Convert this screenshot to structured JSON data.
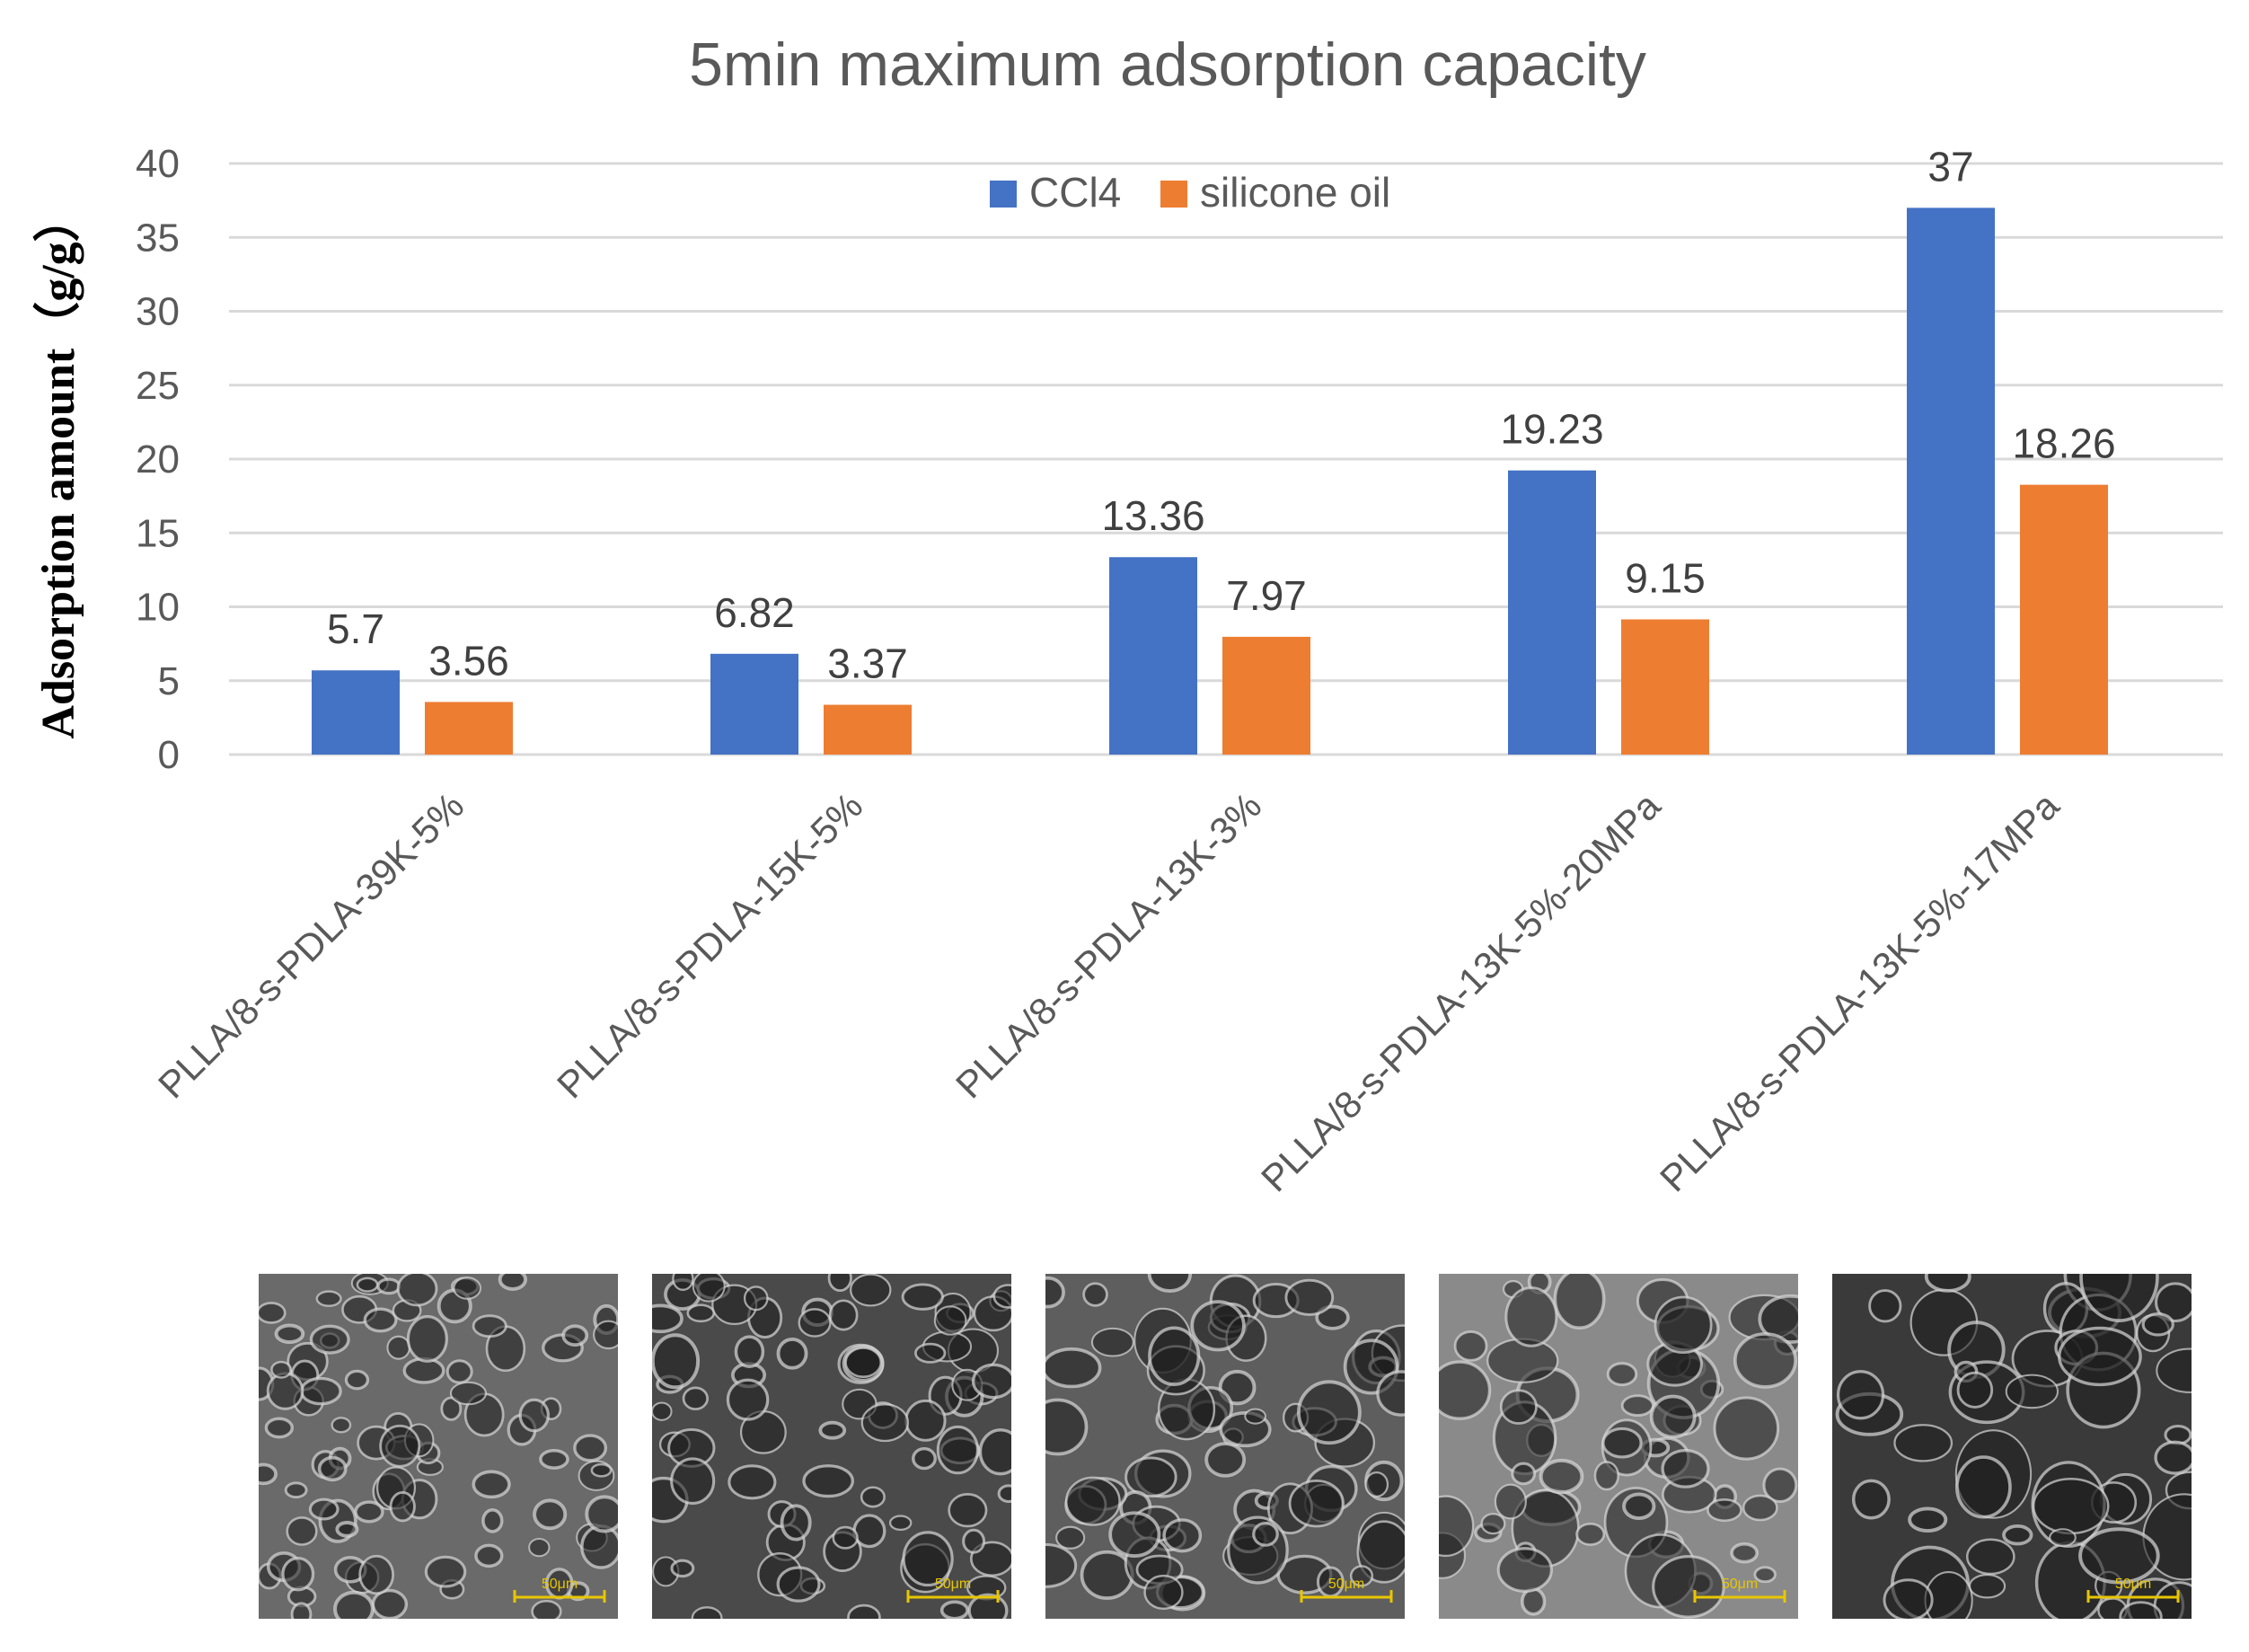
{
  "chart_data": {
    "type": "bar",
    "title": "5min maximum adsorption capacity",
    "xlabel": "",
    "ylabel": "Adsorption amount（g/g）",
    "ylim": [
      0,
      40
    ],
    "yticks": [
      0,
      5,
      10,
      15,
      20,
      25,
      30,
      35,
      40
    ],
    "grid": true,
    "legend_position": "top-center",
    "categories": [
      "PLLA/8-s-PDLA-39K-5%",
      "PLLA/8-s-PDLA-15K-5%",
      "PLLA/8-s-PDLA-13K-3%",
      "PLLA/8-s-PDLA-13K-5%-20MPa",
      "PLLA/8-s-PDLA-13K-5%-17MPa"
    ],
    "series": [
      {
        "name": "CCl4",
        "color": "#4472C4",
        "values": [
          5.7,
          6.82,
          13.36,
          19.23,
          37
        ]
      },
      {
        "name": "silicone oil",
        "color": "#ED7D31",
        "values": [
          3.56,
          3.37,
          7.97,
          9.15,
          18.26
        ]
      }
    ],
    "data_labels": [
      [
        "5.7",
        "6.82",
        "13.36",
        "19.23",
        "37"
      ],
      [
        "3.56",
        "3.37",
        "7.97",
        "9.15",
        "18.26"
      ]
    ]
  },
  "sem_images": [
    {
      "scale_label": "50μm",
      "tone": "#6a6a6a"
    },
    {
      "scale_label": "50μm",
      "tone": "#4a4a4a"
    },
    {
      "scale_label": "50μm",
      "tone": "#5e5e5e"
    },
    {
      "scale_label": "50μm",
      "tone": "#8a8a8a"
    },
    {
      "scale_label": "50μm",
      "tone": "#3a3a3a"
    }
  ],
  "colors": {
    "axis_text": "#595959",
    "grid": "#d9d9d9",
    "scale_bar": "#e8c600"
  }
}
